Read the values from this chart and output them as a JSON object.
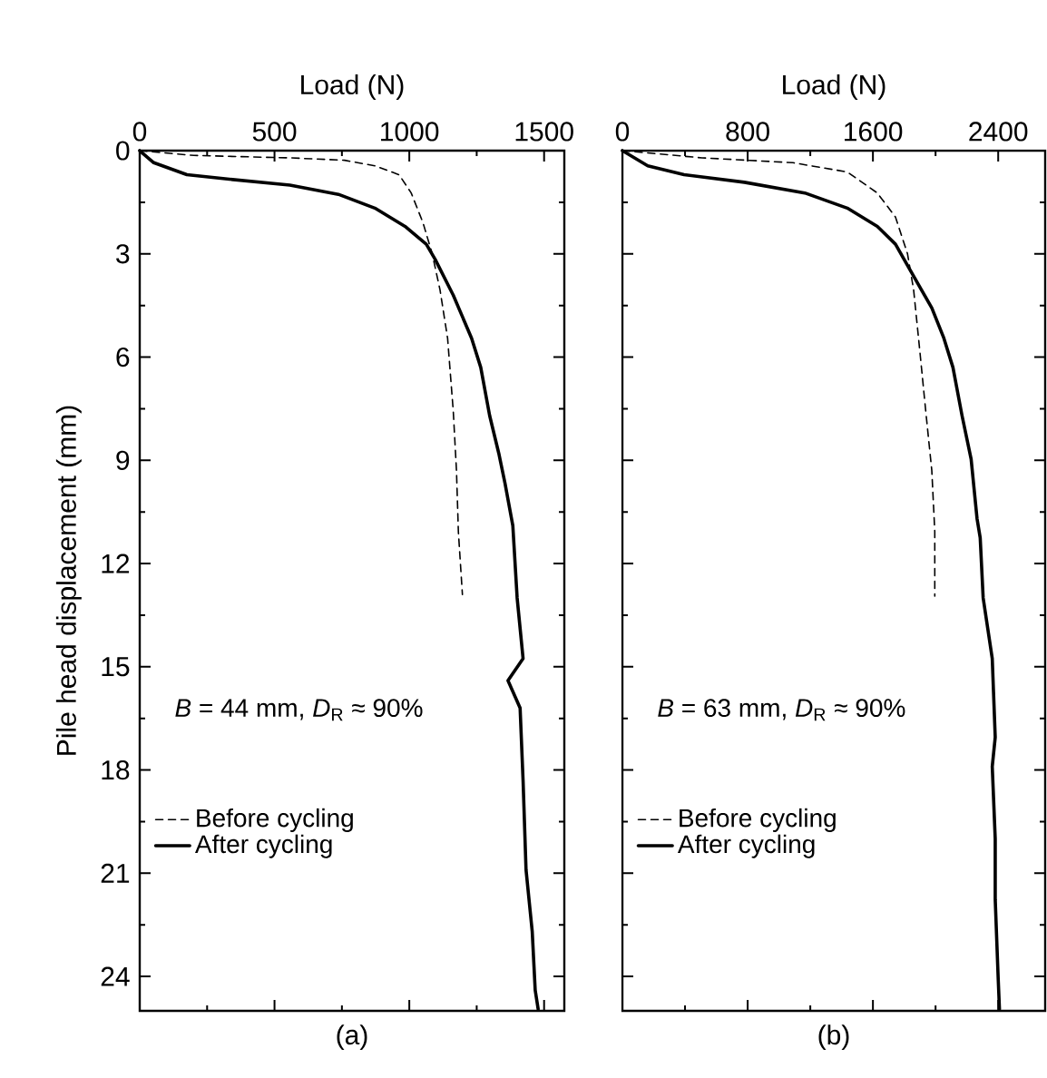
{
  "chart_data": [
    {
      "type": "line",
      "xlabel": "Load (N)",
      "ylabel": "Pile head displacement (mm)",
      "xlim": [
        0,
        1575
      ],
      "xticks": [
        0,
        500,
        1000,
        1500
      ],
      "ylim": [
        25,
        0
      ],
      "yticks": [
        0,
        3,
        6,
        9,
        12,
        15,
        18,
        21,
        24
      ],
      "legend": "bottom left",
      "grid": false,
      "annotations": [
        "*B* = 44 mm, *D*$_{R}$ ≈ 90%",
        "(a)"
      ],
      "series": [
        {
          "name": "Before cycling",
          "color": "#000000",
          "line_style": "dashed",
          "x": [
            0,
            201,
            557,
            760,
            872,
            962,
            1007,
            1051,
            1085,
            1114,
            1142,
            1163,
            1175,
            1182,
            1197
          ],
          "values": [
            0,
            0.14,
            0.21,
            0.28,
            0.44,
            0.7,
            1.23,
            2.1,
            3.0,
            4.05,
            5.45,
            7.56,
            9.3,
            11.07,
            12.9
          ]
        },
        {
          "name": "After cycling",
          "color": "#000000",
          "line_style": "solid",
          "x": [
            0,
            52,
            175,
            333,
            557,
            737,
            872,
            984,
            1063,
            1096,
            1163,
            1231,
            1265,
            1298,
            1332,
            1355,
            1384,
            1400,
            1422,
            1366,
            1411,
            1422,
            1433,
            1456,
            1467,
            1478
          ],
          "values": [
            0,
            0.35,
            0.7,
            0.83,
            1.0,
            1.27,
            1.67,
            2.2,
            2.72,
            3.16,
            4.2,
            5.45,
            6.3,
            7.7,
            8.8,
            9.67,
            10.9,
            13.0,
            14.76,
            15.4,
            16.2,
            18.3,
            20.9,
            22.7,
            24.4,
            24.95
          ]
        }
      ]
    },
    {
      "type": "line",
      "xlabel": "Load (N)",
      "xlim": [
        0,
        2700
      ],
      "xticks": [
        0,
        800,
        1600,
        2400
      ],
      "ylim": [
        25,
        0
      ],
      "yticks": [
        0,
        3,
        6,
        9,
        12,
        15,
        18,
        21,
        24
      ],
      "tick_labels": "x",
      "legend": "bottom left",
      "grid": false,
      "annotations": [
        "*B* = 63 mm, *D*$_{R}$ ≈ 90%",
        "(b)"
      ],
      "series": [
        {
          "name": "Before cycling",
          "color": "#000000",
          "line_style": "dashed",
          "x": [
            0,
            509,
            1088,
            1436,
            1628,
            1744,
            1821,
            1860,
            1899,
            1937,
            1976,
            1995,
            1995
          ],
          "values": [
            0,
            0.21,
            0.35,
            0.62,
            1.23,
            1.93,
            3.0,
            4.05,
            5.8,
            7.56,
            9.3,
            11.07,
            12.95
          ]
        },
        {
          "name": "After cycling",
          "color": "#000000",
          "line_style": "solid",
          "x": [
            0,
            162,
            394,
            779,
            1165,
            1436,
            1628,
            1744,
            1841,
            1976,
            2053,
            2111,
            2169,
            2227,
            2265,
            2285,
            2304,
            2362,
            2381,
            2362,
            2381,
            2381,
            2400,
            2408
          ],
          "values": [
            0,
            0.44,
            0.7,
            0.92,
            1.23,
            1.67,
            2.2,
            2.72,
            3.5,
            4.57,
            5.45,
            6.3,
            7.7,
            8.96,
            10.7,
            11.25,
            13.0,
            14.76,
            17.05,
            17.9,
            20.0,
            21.76,
            24.07,
            24.95
          ]
        }
      ]
    }
  ]
}
